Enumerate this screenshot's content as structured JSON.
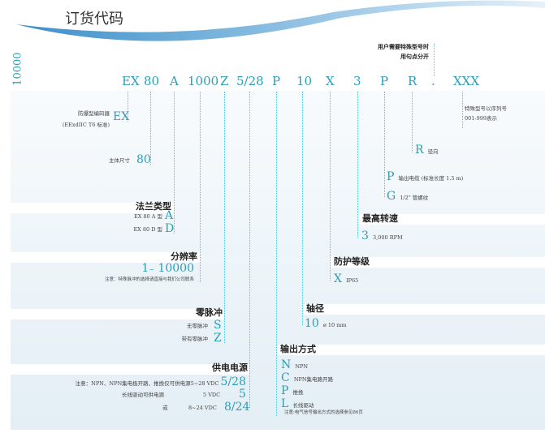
{
  "title": "订货代码",
  "side_label": "10000",
  "separator_note": [
    "用户需要特殊型号时",
    "用句点分开"
  ],
  "codes": [
    "EX",
    "80",
    "A",
    "1000",
    "Z",
    "5/28",
    "P",
    "10",
    "X",
    "3",
    "P",
    "R",
    ".",
    "XXX"
  ],
  "ex": {
    "desc1": "防爆型编码器",
    "desc2": "(EExdIIC T6 标准)",
    "code": "EX"
  },
  "size": {
    "desc": "主体尺寸",
    "code": "80"
  },
  "flange": {
    "title": "法兰类型",
    "items": [
      {
        "desc": "EX 80 A 型",
        "code": "A"
      },
      {
        "desc": "EX 80 D 型",
        "code": "D"
      }
    ]
  },
  "resolution": {
    "title": "分辨率",
    "range_start": "1",
    "range_sep": "~",
    "range_end": "10000",
    "note": "注意：特殊脉冲的选择请直接与我们公司联系"
  },
  "zero": {
    "title": "零脉冲",
    "items": [
      {
        "desc": "无零脉冲",
        "code": "S"
      },
      {
        "desc": "带有零脉冲",
        "code": "Z"
      }
    ]
  },
  "power": {
    "title": "供电电源",
    "items": [
      {
        "desc": "注意：NPN、NPN集电极开路、推挽仅可供电源5~28 VDC",
        "volt": "",
        "code": "5/28"
      },
      {
        "desc": "长线驱动可供电源",
        "volt": "5 VDC",
        "code": "5"
      },
      {
        "desc": "或",
        "volt": "8~24 VDC",
        "code": "8/24"
      }
    ]
  },
  "special": {
    "desc1": "特殊型号以序列号",
    "desc2": "001-999表示"
  },
  "direction": {
    "code": "R",
    "desc": "径向"
  },
  "cable": [
    {
      "code": "P",
      "desc": "输出电缆 (标准长度 1.5 m)"
    },
    {
      "code": "G",
      "desc": "1/2\" 管螺纹"
    }
  ],
  "speed": {
    "title": "最高转速",
    "code": "3",
    "desc": "3,000 RPM"
  },
  "protection": {
    "title": "防护等级",
    "code": "X",
    "desc": "IP65"
  },
  "shaft": {
    "title": "轴径",
    "code": "10",
    "desc": "ø 10 mm"
  },
  "output": {
    "title": "输出方式",
    "items": [
      {
        "code": "N",
        "desc": "NPN"
      },
      {
        "code": "C",
        "desc": "NPN集电路开路"
      },
      {
        "code": "P",
        "desc": "推挽"
      },
      {
        "code": "L",
        "desc": "长线驱动"
      }
    ],
    "note": "注意:电气信号输出方式的选择参见86页"
  },
  "colors": {
    "accent": "#2a9fb5",
    "swoosh": "#4a9fd0"
  }
}
